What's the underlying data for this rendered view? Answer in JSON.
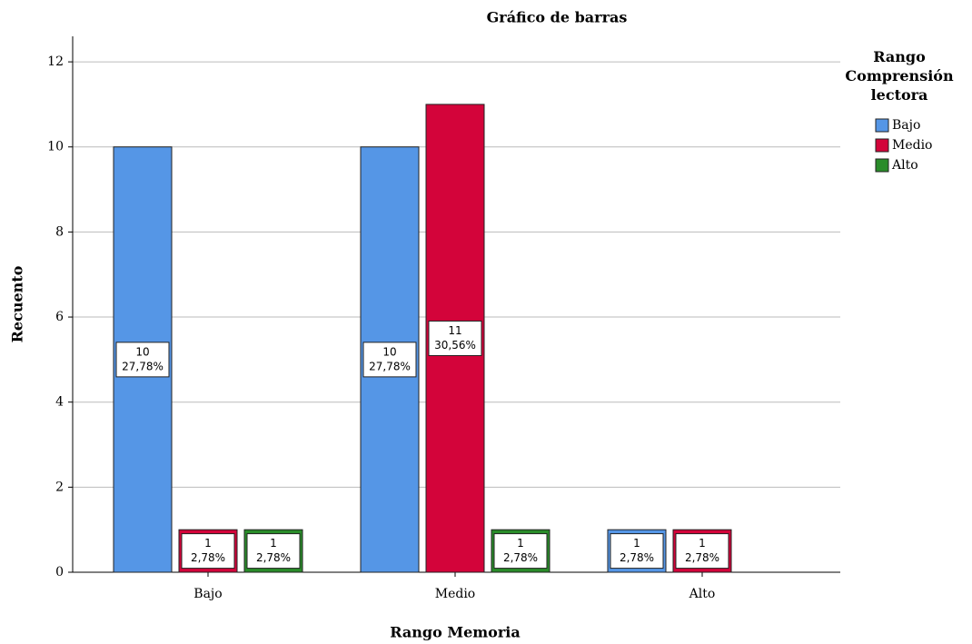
{
  "chart_data": {
    "type": "bar",
    "title": "Gráfico de barras",
    "x_label": "Rango Memoria",
    "y_label": "Recuento",
    "legend_title": "Rango Comprensión lectora",
    "categories": [
      "Bajo",
      "Medio",
      "Alto"
    ],
    "series": [
      {
        "name": "Bajo",
        "color": "#5596e6",
        "values": [
          10,
          10,
          1
        ],
        "percent_labels": [
          "27,78%",
          "27,78%",
          "2,78%"
        ]
      },
      {
        "name": "Medio",
        "color": "#d3043a",
        "values": [
          1,
          11,
          1
        ],
        "percent_labels": [
          "2,78%",
          "30,56%",
          "2,78%"
        ]
      },
      {
        "name": "Alto",
        "color": "#2a8c2a",
        "values": [
          1,
          1,
          null
        ],
        "percent_labels": [
          "2,78%",
          "2,78%",
          null
        ]
      }
    ],
    "ylim": [
      0,
      12.6
    ],
    "yticks": [
      0,
      2,
      4,
      6,
      8,
      10,
      12
    ],
    "grid": true,
    "legend": "right"
  }
}
